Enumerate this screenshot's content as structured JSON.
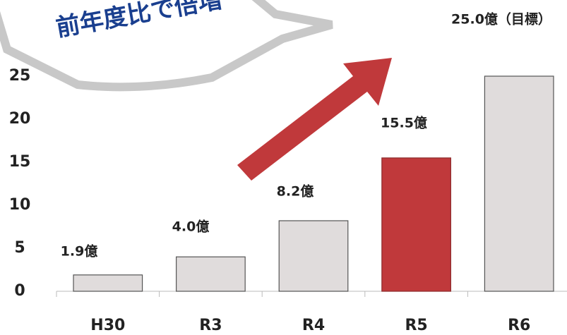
{
  "chart_data": {
    "type": "bar",
    "annotation": "前年度比で倍増",
    "categories": [
      "H30",
      "R3",
      "R4",
      "R5",
      "R6"
    ],
    "values": [
      1.9,
      4.0,
      8.2,
      15.5,
      25.0
    ],
    "value_labels": [
      "1.9億",
      "4.0億",
      "8.2億",
      "15.5億",
      "25.0億（目標）"
    ],
    "colors": [
      "#e0dcdc",
      "#e0dcdc",
      "#e0dcdc",
      "#c0393b",
      "#e0dcdc"
    ],
    "ylim": [
      0,
      25
    ],
    "yticks": [
      0,
      5,
      10,
      15,
      20,
      25
    ],
    "grid": false
  }
}
